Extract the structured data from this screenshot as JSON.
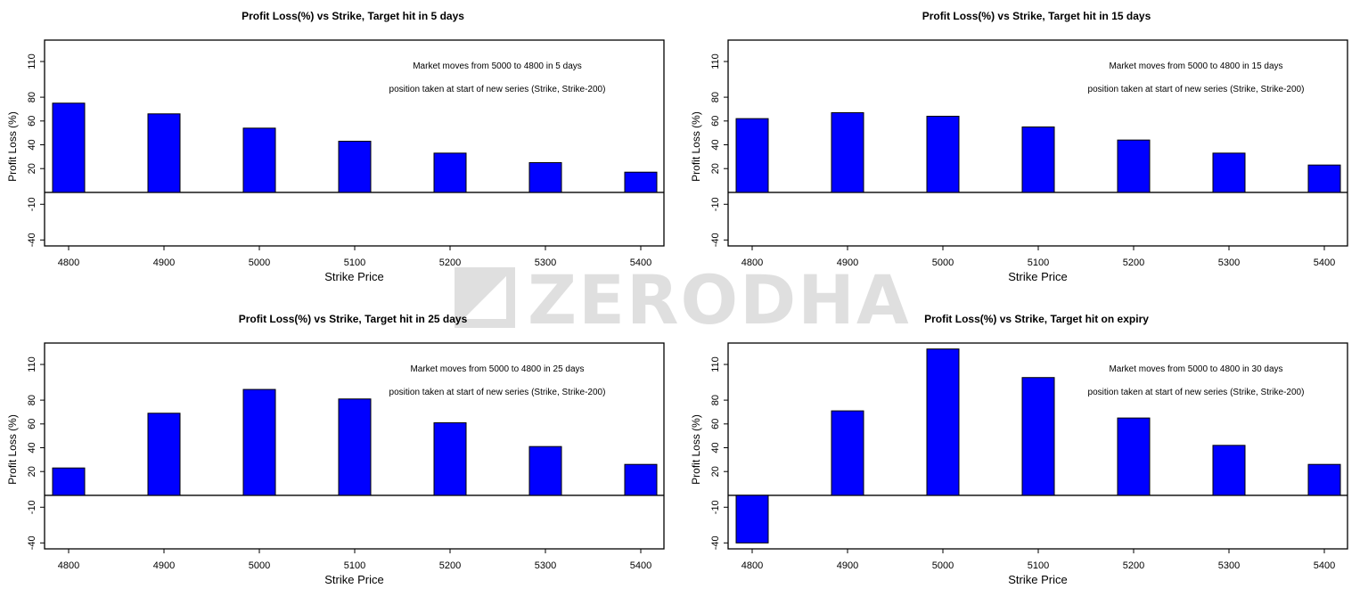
{
  "watermark": {
    "text": "ZERODHA"
  },
  "colors": {
    "bar": "#0000ff",
    "axis": "#000000"
  },
  "chart_data": [
    {
      "type": "bar",
      "title": "Profit Loss(%) vs Strike, Target hit in 5 days",
      "xlabel": "Strike Price",
      "ylabel": "Profit Loss (%)",
      "categories": [
        "4800",
        "4900",
        "5000",
        "5100",
        "5200",
        "5300",
        "5400"
      ],
      "values": [
        75,
        66,
        54,
        43,
        33,
        25,
        17
      ],
      "ylim": [
        -45,
        128
      ],
      "ytick_values": [
        -40,
        -10,
        20,
        40,
        60,
        80,
        110
      ],
      "ytick_labels": [
        "-40",
        "-10",
        "20",
        "40",
        "60",
        "80",
        "110"
      ],
      "annotations": [
        "Market moves from 5000 to 4800 in 5 days",
        "position taken at start of new series (Strike, Strike-200)"
      ]
    },
    {
      "type": "bar",
      "title": "Profit Loss(%) vs Strike, Target hit in 15 days",
      "xlabel": "Strike Price",
      "ylabel": "Profit Loss (%)",
      "categories": [
        "4800",
        "4900",
        "5000",
        "5100",
        "5200",
        "5300",
        "5400"
      ],
      "values": [
        62,
        67,
        64,
        55,
        44,
        33,
        23
      ],
      "ylim": [
        -45,
        128
      ],
      "ytick_values": [
        -40,
        -10,
        20,
        40,
        60,
        80,
        110
      ],
      "ytick_labels": [
        "-40",
        "-10",
        "20",
        "40",
        "60",
        "80",
        "110"
      ],
      "annotations": [
        "Market moves from 5000 to 4800 in 15 days",
        "position taken at start of new series (Strike, Strike-200)"
      ]
    },
    {
      "type": "bar",
      "title": "Profit Loss(%) vs Strike, Target hit in 25 days",
      "xlabel": "Strike Price",
      "ylabel": "Profit Loss (%)",
      "categories": [
        "4800",
        "4900",
        "5000",
        "5100",
        "5200",
        "5300",
        "5400"
      ],
      "values": [
        23,
        69,
        89,
        81,
        61,
        41,
        26
      ],
      "ylim": [
        -45,
        128
      ],
      "ytick_values": [
        -40,
        -10,
        20,
        40,
        60,
        80,
        110
      ],
      "ytick_labels": [
        "-40",
        "-10",
        "20",
        "40",
        "60",
        "80",
        "110"
      ],
      "annotations": [
        "Market moves from 5000 to 4800 in 25 days",
        "position taken at start of new series (Strike, Strike-200)"
      ]
    },
    {
      "type": "bar",
      "title": "Profit Loss(%) vs Strike, Target hit on expiry",
      "xlabel": "Strike Price",
      "ylabel": "Profit Loss (%)",
      "categories": [
        "4800",
        "4900",
        "5000",
        "5100",
        "5200",
        "5300",
        "5400"
      ],
      "values": [
        -40,
        71,
        123,
        99,
        65,
        42,
        26
      ],
      "ylim": [
        -45,
        128
      ],
      "ytick_values": [
        -40,
        -10,
        20,
        40,
        60,
        80,
        110
      ],
      "ytick_labels": [
        "-40",
        "-10",
        "20",
        "40",
        "60",
        "80",
        "110"
      ],
      "annotations": [
        "Market moves from 5000 to 4800 in 30 days",
        "position taken at start of new series (Strike, Strike-200)"
      ]
    }
  ]
}
